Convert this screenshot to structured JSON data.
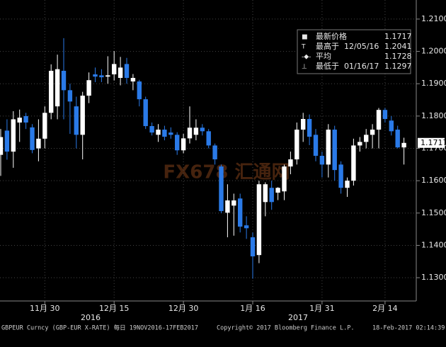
{
  "chart_data": {
    "type": "candlestick",
    "categories": [
      null,
      null,
      null,
      null,
      null,
      null,
      null,
      "11月 30",
      null,
      null,
      null,
      null,
      null,
      null,
      null,
      null,
      null,
      null,
      "12月 15",
      null,
      null,
      null,
      null,
      null,
      null,
      null,
      null,
      null,
      null,
      "12月 30",
      null,
      null,
      null,
      null,
      null,
      null,
      null,
      null,
      null,
      null,
      "1月 16",
      null,
      null,
      null,
      null,
      null,
      null,
      null,
      null,
      null,
      null,
      "1月 31",
      null,
      null,
      null,
      null,
      null,
      null,
      null,
      null,
      null,
      "2月 14",
      null,
      null,
      null
    ],
    "years": [
      "2016",
      "2017"
    ],
    "open": [
      1.168,
      1.1755,
      1.169,
      1.178,
      1.18,
      1.1765,
      1.17,
      1.173,
      1.181,
      1.183,
      1.194,
      1.188,
      1.183,
      1.1742,
      1.1863,
      1.1929,
      1.1926,
      1.1922,
      1.1929,
      1.1918,
      1.1961,
      1.1907,
      1.1907,
      1.1852,
      1.1769,
      1.1742,
      1.1758,
      1.1749,
      1.1742,
      1.1694,
      1.1731,
      1.1742,
      1.1764,
      1.1753,
      1.1709,
      1.1644,
      1.1501,
      1.1523,
      1.1545,
      1.1462,
      1.1425,
      1.137,
      1.1534,
      1.1578,
      1.1563,
      1.1567,
      1.1644,
      1.1666,
      1.1758,
      1.1791,
      1.1742,
      1.1677,
      1.165,
      1.1758,
      1.165,
      1.1578,
      1.16,
      1.1709,
      1.172,
      1.1742,
      1.1758,
      1.1819,
      1.1786,
      1.1758,
      1.1703
    ],
    "high": [
      1.176,
      1.179,
      1.1815,
      1.182,
      1.181,
      1.1775,
      1.179,
      1.183,
      1.196,
      1.199,
      1.2041,
      1.19,
      1.186,
      1.1875,
      1.1935,
      1.195,
      1.1945,
      1.1985,
      1.2001,
      1.1983,
      1.198,
      1.193,
      1.1912,
      1.186,
      1.178,
      1.1775,
      1.177,
      1.1765,
      1.175,
      1.1745,
      1.183,
      1.179,
      1.1775,
      1.176,
      1.1715,
      1.165,
      1.1589,
      1.156,
      1.156,
      1.149,
      1.144,
      1.16,
      1.1595,
      1.16,
      1.158,
      1.165,
      1.169,
      1.178,
      1.181,
      1.1805,
      1.176,
      1.169,
      1.1775,
      1.177,
      1.166,
      1.161,
      1.173,
      1.1735,
      1.176,
      1.1775,
      1.1825,
      1.1825,
      1.18,
      1.177,
      1.1733
    ],
    "low": [
      1.1615,
      1.1665,
      1.164,
      1.172,
      1.176,
      1.1685,
      1.166,
      1.17,
      1.179,
      1.179,
      1.179,
      1.1745,
      1.17,
      1.1666,
      1.184,
      1.1905,
      1.1905,
      1.19,
      1.191,
      1.1895,
      1.19,
      1.188,
      1.183,
      1.176,
      1.174,
      1.172,
      1.1725,
      1.173,
      1.168,
      1.1685,
      1.1715,
      1.1725,
      1.174,
      1.17,
      1.165,
      1.15,
      1.1425,
      1.143,
      1.144,
      1.142,
      1.1297,
      1.1345,
      1.149,
      1.151,
      1.154,
      1.154,
      1.162,
      1.165,
      1.172,
      1.171,
      1.166,
      1.161,
      1.161,
      1.16,
      1.156,
      1.155,
      1.1585,
      1.169,
      1.17,
      1.17,
      1.17,
      1.178,
      1.174,
      1.17,
      1.165
    ],
    "close": [
      1.1735,
      1.169,
      1.179,
      1.1795,
      1.178,
      1.1695,
      1.173,
      1.181,
      1.194,
      1.1945,
      1.188,
      1.1845,
      1.1742,
      1.1863,
      1.1911,
      1.1922,
      1.192,
      1.1926,
      1.1961,
      1.195,
      1.1918,
      1.1918,
      1.1852,
      1.1769,
      1.1749,
      1.1758,
      1.1736,
      1.1742,
      1.1694,
      1.1731,
      1.1764,
      1.1764,
      1.1753,
      1.1709,
      1.1666,
      1.1506,
      1.1539,
      1.1539,
      1.1458,
      1.1453,
      1.1366,
      1.1589,
      1.1589,
      1.1534,
      1.1578,
      1.1644,
      1.1666,
      1.1758,
      1.1791,
      1.1736,
      1.1677,
      1.165,
      1.1758,
      1.1633,
      1.1578,
      1.16,
      1.1709,
      1.172,
      1.1742,
      1.1758,
      1.1819,
      1.1791,
      1.1753,
      1.1703,
      1.1717
    ],
    "up_color": "#ffffff",
    "down_color": "#2a7ae8",
    "ylim": [
      1.1228,
      1.2159
    ],
    "yticks": [
      {
        "value": 1.13,
        "label": "1.1300"
      },
      {
        "value": 1.14,
        "label": "1.1400"
      },
      {
        "value": 1.15,
        "label": "1.1500"
      },
      {
        "value": 1.16,
        "label": "1.1600"
      },
      {
        "value": 1.17,
        "label": "1.1700"
      },
      {
        "value": 1.18,
        "label": "1.1800"
      },
      {
        "value": 1.19,
        "label": "1.1900"
      },
      {
        "value": 1.2,
        "label": "1.2000"
      },
      {
        "value": 1.21,
        "label": "1.2100"
      }
    ],
    "grid": true,
    "legend": [
      {
        "name": "最新价格",
        "value": 1.1717
      },
      {
        "name": "最高于",
        "date": "12/05/16",
        "value": 1.2041
      },
      {
        "name": "平均",
        "value": 1.1728
      },
      {
        "name": "最低于",
        "date": "01/16/17",
        "value": 1.1297
      }
    ],
    "watermark": "FX678 汇通网",
    "footer": [
      "GBPEUR Curncy (GBP-EUR X-RATE)  每日 19NOV2016-17FEB2017",
      "Copyright© 2017 Bloomberg Finance L.P.",
      "18-Feb-2017 02:14:39"
    ]
  }
}
